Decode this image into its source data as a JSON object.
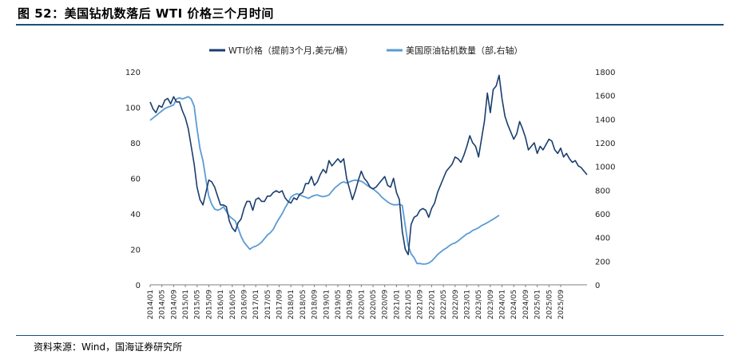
{
  "figure": {
    "title": "图 52：美国钻机数落后 WTI 价格三个月时间",
    "source": "资料来源：Wind，国海证券研究所"
  },
  "chart_data": {
    "type": "line",
    "title": "",
    "xlabel": "",
    "ylabel": "",
    "x_ticks": [
      "2014/01",
      "2014/05",
      "2014/09",
      "2015/01",
      "2015/05",
      "2015/09",
      "2016/01",
      "2016/05",
      "2016/09",
      "2017/01",
      "2017/05",
      "2017/09",
      "2018/01",
      "2018/05",
      "2018/09",
      "2019/01",
      "2019/05",
      "2019/09",
      "2020/01",
      "2020/05",
      "2020/09",
      "2021/01",
      "2021/05",
      "2021/09",
      "2022/01",
      "2022/05",
      "2022/09",
      "2023/01",
      "2023/05",
      "2023/09",
      "2024/01",
      "2024/05",
      "2024/09",
      "2025/01",
      "2025/05",
      "2025/09"
    ],
    "y_left": {
      "ticks": [
        0,
        20,
        40,
        60,
        80,
        100,
        120
      ],
      "ylim": [
        0,
        120
      ]
    },
    "y_right": {
      "ticks": [
        0,
        200,
        400,
        600,
        800,
        1000,
        1200,
        1400,
        1600,
        1800
      ],
      "ylim": [
        0,
        1800
      ]
    },
    "legend_position": "top-center",
    "series": [
      {
        "name": "WTI价格（提前3个月,美元/桶）",
        "axis": "left",
        "color": "#1a3e6e",
        "points": [
          [
            "2014/01",
            103
          ],
          [
            "2014/02",
            99
          ],
          [
            "2014/03",
            97
          ],
          [
            "2014/04",
            101
          ],
          [
            "2014/05",
            100
          ],
          [
            "2014/06",
            104
          ],
          [
            "2014/07",
            105
          ],
          [
            "2014/08",
            102
          ],
          [
            "2014/09",
            106
          ],
          [
            "2014/10",
            103
          ],
          [
            "2014/11",
            103
          ],
          [
            "2014/12",
            98
          ],
          [
            "2015/01",
            94
          ],
          [
            "2015/02",
            88
          ],
          [
            "2015/03",
            78
          ],
          [
            "2015/04",
            68
          ],
          [
            "2015/05",
            55
          ],
          [
            "2015/06",
            48
          ],
          [
            "2015/07",
            45
          ],
          [
            "2015/08",
            52
          ],
          [
            "2015/09",
            59
          ],
          [
            "2015/10",
            58
          ],
          [
            "2015/11",
            55
          ],
          [
            "2015/12",
            50
          ],
          [
            "2016/01",
            45
          ],
          [
            "2016/02",
            45
          ],
          [
            "2016/03",
            44
          ],
          [
            "2016/04",
            36
          ],
          [
            "2016/05",
            32
          ],
          [
            "2016/06",
            30
          ],
          [
            "2016/07",
            35
          ],
          [
            "2016/08",
            37
          ],
          [
            "2016/09",
            43
          ],
          [
            "2016/10",
            47
          ],
          [
            "2016/11",
            47
          ],
          [
            "2016/12",
            42
          ],
          [
            "2017/01",
            48
          ],
          [
            "2017/02",
            49
          ],
          [
            "2017/03",
            47
          ],
          [
            "2017/04",
            47
          ],
          [
            "2017/05",
            50
          ],
          [
            "2017/06",
            50
          ],
          [
            "2017/07",
            52
          ],
          [
            "2017/08",
            53
          ],
          [
            "2017/09",
            52
          ],
          [
            "2017/10",
            53
          ],
          [
            "2017/11",
            49
          ],
          [
            "2017/12",
            47
          ],
          [
            "2018/01",
            46
          ],
          [
            "2018/02",
            49
          ],
          [
            "2018/03",
            48
          ],
          [
            "2018/04",
            51
          ],
          [
            "2018/05",
            52
          ],
          [
            "2018/06",
            57
          ],
          [
            "2018/07",
            57
          ],
          [
            "2018/08",
            61
          ],
          [
            "2018/09",
            56
          ],
          [
            "2018/10",
            58
          ],
          [
            "2018/11",
            62
          ],
          [
            "2018/12",
            65
          ],
          [
            "2019/01",
            63
          ],
          [
            "2019/02",
            70
          ],
          [
            "2019/03",
            67
          ],
          [
            "2019/04",
            69
          ],
          [
            "2019/05",
            71
          ],
          [
            "2019/06",
            69
          ],
          [
            "2019/07",
            71
          ],
          [
            "2019/08",
            60
          ],
          [
            "2019/09",
            54
          ],
          [
            "2019/10",
            48
          ],
          [
            "2019/11",
            53
          ],
          [
            "2019/12",
            59
          ],
          [
            "2020/01",
            64
          ],
          [
            "2020/02",
            60
          ],
          [
            "2020/03",
            58
          ],
          [
            "2020/04",
            55
          ],
          [
            "2020/05",
            54
          ],
          [
            "2020/06",
            55
          ],
          [
            "2020/07",
            57
          ],
          [
            "2020/08",
            59
          ],
          [
            "2020/09",
            61
          ],
          [
            "2020/10",
            56
          ],
          [
            "2020/11",
            55
          ],
          [
            "2020/12",
            60
          ],
          [
            "2021/01",
            52
          ],
          [
            "2021/02",
            48
          ],
          [
            "2021/03",
            30
          ],
          [
            "2021/04",
            20
          ],
          [
            "2021/05",
            17
          ],
          [
            "2021/06",
            34
          ],
          [
            "2021/07",
            38
          ],
          [
            "2021/08",
            39
          ],
          [
            "2021/09",
            42
          ],
          [
            "2021/10",
            43
          ],
          [
            "2021/11",
            42
          ],
          [
            "2021/12",
            38
          ],
          [
            "2022/01",
            43
          ],
          [
            "2022/02",
            46
          ],
          [
            "2022/03",
            52
          ],
          [
            "2022/04",
            56
          ],
          [
            "2022/05",
            60
          ],
          [
            "2022/06",
            64
          ],
          [
            "2022/07",
            66
          ],
          [
            "2022/08",
            68
          ],
          [
            "2022/09",
            72
          ],
          [
            "2022/10",
            71
          ],
          [
            "2022/11",
            69
          ],
          [
            "2022/12",
            73
          ],
          [
            "2023/01",
            78
          ],
          [
            "2023/02",
            84
          ],
          [
            "2023/03",
            80
          ],
          [
            "2023/04",
            78
          ],
          [
            "2023/05",
            72
          ],
          [
            "2023/06",
            82
          ],
          [
            "2023/07",
            92
          ],
          [
            "2023/08",
            108
          ],
          [
            "2023/09",
            97
          ],
          [
            "2023/10",
            110
          ],
          [
            "2023/11",
            112
          ],
          [
            "2023/12",
            118
          ],
          [
            "2024/01",
            105
          ],
          [
            "2024/02",
            95
          ],
          [
            "2024/03",
            90
          ],
          [
            "2024/04",
            86
          ],
          [
            "2024/05",
            82
          ],
          [
            "2024/06",
            85
          ],
          [
            "2024/07",
            92
          ],
          [
            "2024/08",
            88
          ],
          [
            "2024/09",
            83
          ],
          [
            "2024/10",
            76
          ],
          [
            "2024/11",
            78
          ],
          [
            "2024/12",
            80
          ],
          [
            "2025/01",
            74
          ],
          [
            "2025/02",
            78
          ],
          [
            "2025/03",
            76
          ],
          [
            "2025/04",
            79
          ],
          [
            "2025/05",
            82
          ],
          [
            "2025/06",
            81
          ],
          [
            "2025/07",
            76
          ],
          [
            "2025/08",
            74
          ],
          [
            "2025/09",
            77
          ],
          [
            "2025/10",
            72
          ],
          [
            "2025/11",
            74
          ],
          [
            "2025/12",
            71
          ],
          [
            "2026/01",
            69
          ],
          [
            "2026/02",
            70
          ],
          [
            "2026/03",
            67
          ],
          [
            "2026/04",
            66
          ],
          [
            "2026/05",
            64
          ],
          [
            "2026/06",
            62
          ]
        ]
      },
      {
        "name": "美国原油钻机数量（部,右轴）",
        "axis": "right",
        "color": "#5b9bd5",
        "points": [
          [
            "2014/01",
            1390
          ],
          [
            "2014/02",
            1410
          ],
          [
            "2014/03",
            1430
          ],
          [
            "2014/04",
            1450
          ],
          [
            "2014/05",
            1470
          ],
          [
            "2014/06",
            1490
          ],
          [
            "2014/07",
            1500
          ],
          [
            "2014/08",
            1510
          ],
          [
            "2014/09",
            1520
          ],
          [
            "2014/10",
            1570
          ],
          [
            "2014/11",
            1580
          ],
          [
            "2014/12",
            1570
          ],
          [
            "2015/01",
            1580
          ],
          [
            "2015/02",
            1590
          ],
          [
            "2015/03",
            1570
          ],
          [
            "2015/04",
            1510
          ],
          [
            "2015/05",
            1320
          ],
          [
            "2015/06",
            1150
          ],
          [
            "2015/07",
            1050
          ],
          [
            "2015/08",
            890
          ],
          [
            "2015/09",
            750
          ],
          [
            "2015/10",
            680
          ],
          [
            "2015/11",
            640
          ],
          [
            "2015/12",
            630
          ],
          [
            "2016/01",
            640
          ],
          [
            "2016/02",
            660
          ],
          [
            "2016/03",
            620
          ],
          [
            "2016/04",
            580
          ],
          [
            "2016/05",
            560
          ],
          [
            "2016/06",
            540
          ],
          [
            "2016/07",
            480
          ],
          [
            "2016/08",
            410
          ],
          [
            "2016/09",
            360
          ],
          [
            "2016/10",
            330
          ],
          [
            "2016/11",
            300
          ],
          [
            "2016/12",
            318
          ],
          [
            "2017/01",
            326
          ],
          [
            "2017/02",
            340
          ],
          [
            "2017/03",
            360
          ],
          [
            "2017/04",
            390
          ],
          [
            "2017/05",
            420
          ],
          [
            "2017/06",
            440
          ],
          [
            "2017/07",
            470
          ],
          [
            "2017/08",
            520
          ],
          [
            "2017/09",
            560
          ],
          [
            "2017/10",
            600
          ],
          [
            "2017/11",
            650
          ],
          [
            "2017/12",
            690
          ],
          [
            "2018/01",
            740
          ],
          [
            "2018/02",
            760
          ],
          [
            "2018/03",
            770
          ],
          [
            "2018/04",
            760
          ],
          [
            "2018/05",
            750
          ],
          [
            "2018/06",
            740
          ],
          [
            "2018/07",
            730
          ],
          [
            "2018/08",
            745
          ],
          [
            "2018/09",
            755
          ],
          [
            "2018/10",
            760
          ],
          [
            "2018/11",
            750
          ],
          [
            "2018/12",
            745
          ],
          [
            "2019/01",
            750
          ],
          [
            "2019/02",
            760
          ],
          [
            "2019/03",
            790
          ],
          [
            "2019/04",
            820
          ],
          [
            "2019/05",
            840
          ],
          [
            "2019/06",
            860
          ],
          [
            "2019/07",
            870
          ],
          [
            "2019/08",
            860
          ],
          [
            "2019/09",
            870
          ],
          [
            "2019/10",
            880
          ],
          [
            "2019/11",
            885
          ],
          [
            "2019/12",
            880
          ],
          [
            "2020/01",
            875
          ],
          [
            "2020/02",
            860
          ],
          [
            "2020/03",
            840
          ],
          [
            "2020/04",
            825
          ],
          [
            "2020/05",
            810
          ],
          [
            "2020/06",
            790
          ],
          [
            "2020/07",
            770
          ],
          [
            "2020/08",
            740
          ],
          [
            "2020/09",
            720
          ],
          [
            "2020/10",
            700
          ],
          [
            "2020/11",
            685
          ],
          [
            "2020/12",
            676
          ],
          [
            "2021/01",
            676
          ],
          [
            "2021/02",
            680
          ],
          [
            "2021/03",
            670
          ],
          [
            "2021/04",
            500
          ],
          [
            "2021/05",
            330
          ],
          [
            "2021/06",
            262
          ],
          [
            "2021/07",
            230
          ],
          [
            "2021/08",
            180
          ],
          [
            "2021/09",
            180
          ],
          [
            "2021/10",
            175
          ],
          [
            "2021/11",
            176
          ],
          [
            "2021/12",
            184
          ],
          [
            "2022/01",
            200
          ],
          [
            "2022/02",
            226
          ],
          [
            "2022/03",
            255
          ],
          [
            "2022/04",
            275
          ],
          [
            "2022/05",
            295
          ],
          [
            "2022/06",
            310
          ],
          [
            "2022/07",
            330
          ],
          [
            "2022/08",
            345
          ],
          [
            "2022/09",
            354
          ],
          [
            "2022/10",
            370
          ],
          [
            "2022/11",
            390
          ],
          [
            "2022/12",
            410
          ],
          [
            "2023/01",
            430
          ],
          [
            "2023/02",
            440
          ],
          [
            "2023/03",
            460
          ],
          [
            "2023/04",
            470
          ],
          [
            "2023/05",
            482
          ],
          [
            "2023/06",
            500
          ],
          [
            "2023/07",
            512
          ],
          [
            "2023/08",
            525
          ],
          [
            "2023/09",
            540
          ],
          [
            "2023/10",
            555
          ],
          [
            "2023/11",
            570
          ],
          [
            "2023/12",
            588
          ]
        ]
      }
    ]
  }
}
